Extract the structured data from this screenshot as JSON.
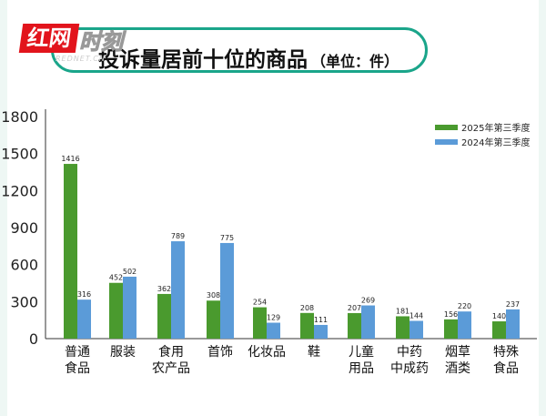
{
  "logo": {
    "text": "红网",
    "text2": "时刻",
    "sub": "REDNET.CN"
  },
  "header": {
    "title": "投诉量居前十位的商品",
    "unit": "（单位：件）"
  },
  "chart_data": {
    "type": "bar",
    "title": "投诉量居前十位的商品（单位：件）",
    "categories": [
      [
        "普通",
        "食品"
      ],
      [
        "服装"
      ],
      [
        "食用",
        "农产品"
      ],
      [
        "首饰"
      ],
      [
        "化妆品"
      ],
      [
        "鞋"
      ],
      [
        "儿童",
        "用品"
      ],
      [
        "中药",
        "中成药"
      ],
      [
        "烟草",
        "酒类"
      ],
      [
        "特殊",
        "食品"
      ]
    ],
    "series": [
      {
        "name": "2025年第三季度",
        "color": "#4a9a2e",
        "values": [
          1416,
          452,
          362,
          308,
          254,
          208,
          207,
          181,
          156,
          140
        ]
      },
      {
        "name": "2024年第三季度",
        "color": "#5b9bd8",
        "values": [
          316,
          502,
          789,
          775,
          129,
          111,
          269,
          144,
          220,
          237
        ]
      }
    ],
    "yticks": [
      "0",
      "300",
      "600",
      "900",
      "1200",
      "1500",
      "1800"
    ],
    "ylim": [
      0,
      1800
    ],
    "legend": "top-right"
  }
}
